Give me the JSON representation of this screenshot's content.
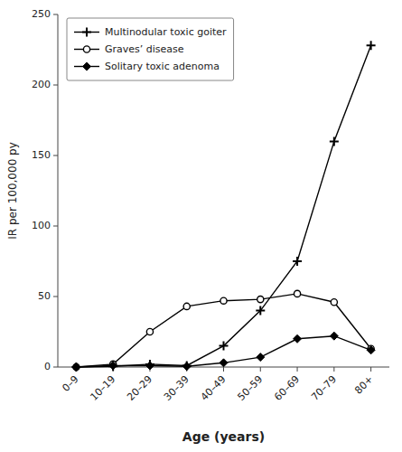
{
  "chart_data": {
    "type": "line",
    "categories": [
      "0–9",
      "10–19",
      "20–29",
      "30–39",
      "40–49",
      "50–59",
      "60–69",
      "70–79",
      "80+"
    ],
    "series": [
      {
        "name": "Multinodular toxic goiter",
        "color": "#000000",
        "marker": "plus",
        "values": [
          0,
          0.5,
          2,
          1,
          15,
          40,
          75,
          160,
          228
        ]
      },
      {
        "name": "Graves’ disease",
        "color": "#000000",
        "marker": "circle",
        "values": [
          0,
          2,
          25,
          43,
          47,
          48,
          52,
          46,
          13
        ]
      },
      {
        "name": "Solitary toxic adenoma",
        "color": "#000000",
        "marker": "diamond",
        "values": [
          0,
          1,
          1,
          0.5,
          3,
          7,
          20,
          22,
          12
        ]
      }
    ],
    "xlabel": "Age (years)",
    "ylabel": "IR per 100,000 py",
    "ylim": [
      0,
      250
    ],
    "yticks": [
      0,
      50,
      100,
      150,
      200,
      250
    ],
    "grid": false,
    "legend": "upper left"
  }
}
